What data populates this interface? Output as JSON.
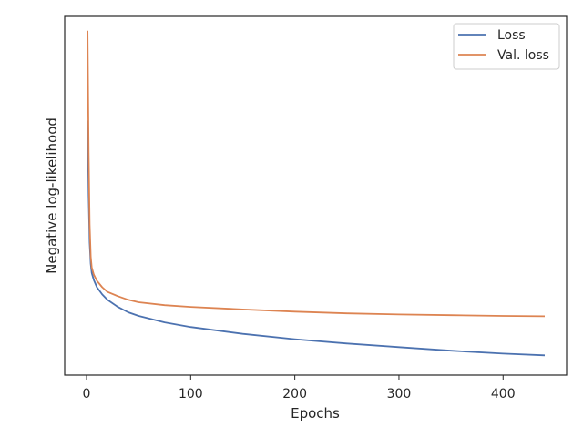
{
  "chart_data": {
    "type": "line",
    "title": "",
    "xlabel": "Epochs",
    "ylabel": "Negative log-likelihood",
    "xlim": [
      -21,
      461
    ],
    "ylim": [
      0.0,
      1.0
    ],
    "x_ticks": [
      0,
      100,
      200,
      300,
      400
    ],
    "y_ticks_shown": false,
    "grid": false,
    "legend_position": "top-right",
    "series": [
      {
        "name": "Loss",
        "color": "#4c72b0",
        "x": [
          1,
          2,
          3,
          4,
          5,
          7,
          10,
          15,
          20,
          30,
          40,
          50,
          75,
          100,
          150,
          200,
          250,
          300,
          350,
          400,
          440
        ],
        "y": [
          0.71,
          0.5,
          0.37,
          0.31,
          0.285,
          0.265,
          0.245,
          0.225,
          0.21,
          0.19,
          0.175,
          0.165,
          0.147,
          0.134,
          0.115,
          0.1,
          0.088,
          0.078,
          0.068,
          0.06,
          0.055
        ]
      },
      {
        "name": "Val. loss",
        "color": "#dd8452",
        "x": [
          1,
          2,
          3,
          4,
          5,
          7,
          10,
          15,
          20,
          30,
          40,
          50,
          75,
          100,
          150,
          200,
          250,
          300,
          350,
          400,
          440
        ],
        "y": [
          0.96,
          0.62,
          0.42,
          0.33,
          0.3,
          0.28,
          0.263,
          0.245,
          0.232,
          0.22,
          0.21,
          0.203,
          0.195,
          0.19,
          0.183,
          0.177,
          0.172,
          0.169,
          0.167,
          0.165,
          0.164
        ]
      }
    ]
  }
}
